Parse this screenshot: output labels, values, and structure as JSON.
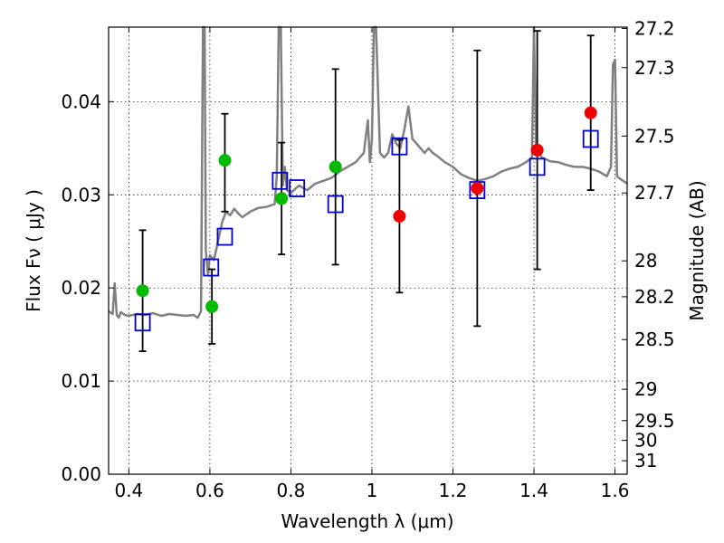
{
  "chart_data": {
    "type": "scatter",
    "xlabel": "Wavelength  λ (μm)",
    "ylabel": "Flux  Fν  ( μJy )",
    "y2label": "Magnitude (AB)",
    "xlim": [
      0.35,
      1.63
    ],
    "ylim": [
      0.0,
      0.048
    ],
    "grid": true,
    "x_ticks": [
      0.4,
      0.6,
      0.8,
      1.0,
      1.2,
      1.4,
      1.6
    ],
    "x_tick_labels": [
      "0.4",
      "0.6",
      "0.8",
      "1",
      "1.2",
      "1.4",
      "1.6"
    ],
    "y_ticks": [
      0.0,
      0.01,
      0.02,
      0.03,
      0.04
    ],
    "y_tick_labels": [
      "0.00",
      "0.01",
      "0.02",
      "0.03",
      "0.04"
    ],
    "mag_ticks": [
      27.2,
      27.3,
      27.5,
      27.7,
      28,
      28.2,
      28.5,
      29,
      29.5,
      30,
      31
    ],
    "mag_tick_labels": [
      "27.2",
      "27.3",
      "27.5",
      "27.7",
      "28",
      "28.2",
      "28.5",
      "29",
      "29.5",
      "30",
      "31"
    ],
    "colors": {
      "spectrum": "#808080",
      "model": "#0000cc",
      "green": "#00bb00",
      "red": "#ee0000",
      "errorbar": "#000000"
    },
    "series": [
      {
        "kind": "spectrum",
        "x": [
          0.35,
          0.36,
          0.365,
          0.37,
          0.375,
          0.38,
          0.39,
          0.4,
          0.42,
          0.44,
          0.46,
          0.48,
          0.5,
          0.52,
          0.54,
          0.56,
          0.57,
          0.578,
          0.583,
          0.587,
          0.59,
          0.595,
          0.6,
          0.61,
          0.62,
          0.63,
          0.64,
          0.65,
          0.66,
          0.67,
          0.68,
          0.7,
          0.72,
          0.74,
          0.76,
          0.765,
          0.77,
          0.775,
          0.78,
          0.785,
          0.79,
          0.8,
          0.81,
          0.82,
          0.84,
          0.86,
          0.88,
          0.9,
          0.92,
          0.94,
          0.96,
          0.98,
          0.99,
          0.995,
          1.0,
          1.005,
          1.01,
          1.02,
          1.03,
          1.04,
          1.05,
          1.06,
          1.07,
          1.08,
          1.09,
          1.1,
          1.11,
          1.12,
          1.13,
          1.14,
          1.15,
          1.16,
          1.18,
          1.2,
          1.22,
          1.24,
          1.26,
          1.28,
          1.3,
          1.32,
          1.34,
          1.36,
          1.38,
          1.395,
          1.4,
          1.405,
          1.41,
          1.42,
          1.44,
          1.46,
          1.48,
          1.5,
          1.52,
          1.54,
          1.56,
          1.58,
          1.59,
          1.595,
          1.6,
          1.605,
          1.61,
          1.62,
          1.63
        ],
        "y": [
          0.0175,
          0.0172,
          0.0205,
          0.0171,
          0.0168,
          0.0174,
          0.0171,
          0.017,
          0.0172,
          0.0171,
          0.0173,
          0.017,
          0.0172,
          0.0171,
          0.017,
          0.0171,
          0.0168,
          0.0175,
          0.048,
          0.048,
          0.024,
          0.0215,
          0.0235,
          0.023,
          0.025,
          0.027,
          0.0282,
          0.0278,
          0.0285,
          0.028,
          0.0276,
          0.0282,
          0.0286,
          0.0287,
          0.029,
          0.032,
          0.048,
          0.048,
          0.031,
          0.033,
          0.0305,
          0.0302,
          0.0306,
          0.031,
          0.0305,
          0.0312,
          0.0315,
          0.0318,
          0.0325,
          0.033,
          0.0335,
          0.0345,
          0.038,
          0.0335,
          0.036,
          0.048,
          0.048,
          0.0345,
          0.034,
          0.0345,
          0.0365,
          0.0355,
          0.035,
          0.037,
          0.0395,
          0.036,
          0.0355,
          0.035,
          0.0345,
          0.035,
          0.0345,
          0.0342,
          0.0335,
          0.033,
          0.0322,
          0.0318,
          0.0315,
          0.0317,
          0.032,
          0.0325,
          0.0328,
          0.033,
          0.0335,
          0.034,
          0.048,
          0.0355,
          0.0345,
          0.034,
          0.0336,
          0.0335,
          0.0332,
          0.033,
          0.033,
          0.0328,
          0.0325,
          0.032,
          0.033,
          0.044,
          0.0445,
          0.032,
          0.0318,
          0.0315,
          0.0312
        ]
      },
      {
        "kind": "model-squares",
        "x": [
          0.434,
          0.603,
          0.637,
          0.773,
          0.815,
          0.91,
          1.068,
          1.26,
          1.408,
          1.54
        ],
        "y": [
          0.0163,
          0.0222,
          0.0255,
          0.0315,
          0.0307,
          0.029,
          0.0352,
          0.0305,
          0.033,
          0.036
        ]
      },
      {
        "kind": "green-points",
        "x": [
          0.434,
          0.605,
          0.637,
          0.777,
          0.91
        ],
        "y": [
          0.0197,
          0.018,
          0.0337,
          0.0296,
          0.033
        ],
        "err_lo": [
          0.0065,
          0.004,
          0.0055,
          0.006,
          0.0105
        ],
        "err_hi": [
          0.0065,
          0.004,
          0.005,
          0.006,
          0.0105
        ]
      },
      {
        "kind": "red-points",
        "x": [
          1.068,
          1.26,
          1.408,
          1.54
        ],
        "y": [
          0.0277,
          0.0307,
          0.0348,
          0.0388
        ],
        "err_lo": [
          0.0082,
          0.0148,
          0.0128,
          0.0083
        ],
        "err_hi": [
          0.0082,
          0.0148,
          0.0128,
          0.0083
        ]
      }
    ]
  }
}
